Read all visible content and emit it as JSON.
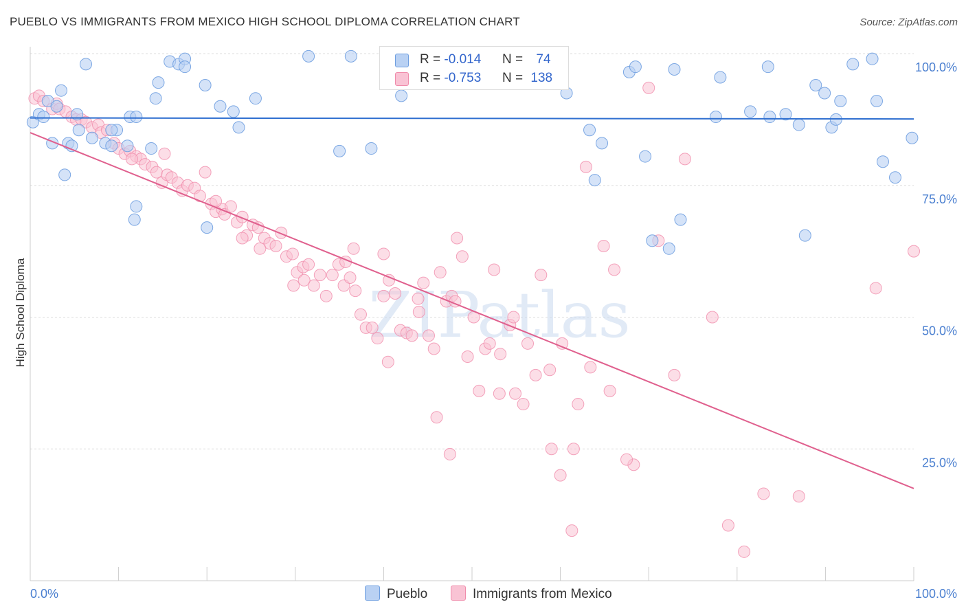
{
  "title": "PUEBLO VS IMMIGRANTS FROM MEXICO HIGH SCHOOL DIPLOMA CORRELATION CHART",
  "source": "Source: ZipAtlas.com",
  "watermark": "ZIPatlas",
  "legend_top": {
    "rows": [
      {
        "r_label": "R =",
        "r_value": "-0.014",
        "n_label": "N =",
        "n_value": "74"
      },
      {
        "r_label": "R =",
        "r_value": "-0.753",
        "n_label": "N =",
        "n_value": "138"
      }
    ]
  },
  "chart_data": {
    "type": "scatter",
    "title": "PUEBLO VS IMMIGRANTS FROM MEXICO HIGH SCHOOL DIPLOMA CORRELATION CHART",
    "xlabel": "",
    "ylabel": "High School Diploma",
    "xlim": [
      0,
      100
    ],
    "ylim": [
      0,
      100
    ],
    "x_tick_labels": [
      "0.0%",
      "100.0%"
    ],
    "y_tick_labels": [
      "100.0%",
      "75.0%",
      "50.0%",
      "25.0%"
    ],
    "y_tick_values": [
      100,
      75,
      50,
      25
    ],
    "grid": true,
    "legend": "bottom-center",
    "colors": {
      "pueblo": "#6f9fe0",
      "mexico": "#f08cab",
      "pueblo_line": "#2f6fd0",
      "mexico_line": "#e0608e"
    },
    "series": [
      {
        "name": "Pueblo",
        "trend": [
          [
            0,
            87.8
          ],
          [
            100,
            87.6
          ]
        ],
        "points": [
          [
            0.3,
            87
          ],
          [
            1,
            88.5
          ],
          [
            2,
            91
          ],
          [
            1.5,
            88
          ],
          [
            3.5,
            93
          ],
          [
            6.3,
            98
          ],
          [
            3,
            90
          ],
          [
            5.3,
            88.5
          ],
          [
            2.5,
            83
          ],
          [
            4.3,
            83
          ],
          [
            4.7,
            82.5
          ],
          [
            5.5,
            85.5
          ],
          [
            7,
            84
          ],
          [
            8.5,
            83
          ],
          [
            9.2,
            82.5
          ],
          [
            9.8,
            85.5
          ],
          [
            9.2,
            85.5
          ],
          [
            11.3,
            88
          ],
          [
            11,
            82.5
          ],
          [
            12,
            88
          ],
          [
            13.7,
            82
          ],
          [
            14.2,
            91.5
          ],
          [
            14.5,
            94.5
          ],
          [
            15.8,
            98.5
          ],
          [
            16.8,
            98
          ],
          [
            17.5,
            99
          ],
          [
            17.5,
            97.5
          ],
          [
            19.8,
            94
          ],
          [
            21.5,
            90
          ],
          [
            23,
            89
          ],
          [
            23.6,
            86
          ],
          [
            25.5,
            91.5
          ],
          [
            12,
            71
          ],
          [
            11.8,
            68.5
          ],
          [
            20,
            67
          ],
          [
            3.9,
            77
          ],
          [
            31.5,
            99.5
          ],
          [
            36.3,
            99.5
          ],
          [
            35,
            81.5
          ],
          [
            38.6,
            82
          ],
          [
            42,
            92
          ],
          [
            46.2,
            97
          ],
          [
            46.5,
            94.5
          ],
          [
            60.7,
            92.5
          ],
          [
            63.3,
            85.5
          ],
          [
            63.9,
            76
          ],
          [
            64.7,
            83
          ],
          [
            67.8,
            96.5
          ],
          [
            68.5,
            97.5
          ],
          [
            69.6,
            80.5
          ],
          [
            70.4,
            64.5
          ],
          [
            72.3,
            63
          ],
          [
            72.9,
            97
          ],
          [
            73.6,
            68.5
          ],
          [
            77.6,
            88
          ],
          [
            78.1,
            95.5
          ],
          [
            81.5,
            89
          ],
          [
            83.5,
            97.5
          ],
          [
            83.7,
            88
          ],
          [
            85.5,
            88.5
          ],
          [
            87,
            86.5
          ],
          [
            87.7,
            65.5
          ],
          [
            88.9,
            94
          ],
          [
            89.9,
            92.5
          ],
          [
            90.7,
            86
          ],
          [
            91.2,
            87.5
          ],
          [
            91.7,
            91
          ],
          [
            93.1,
            98
          ],
          [
            95.3,
            99
          ],
          [
            95.8,
            91
          ],
          [
            96.5,
            79.5
          ],
          [
            97.9,
            76.5
          ],
          [
            99.8,
            84
          ]
        ]
      },
      {
        "name": "Immigrants from Mexico",
        "trend": [
          [
            0,
            85
          ],
          [
            100,
            17.5
          ]
        ],
        "points": [
          [
            0.5,
            91.5
          ],
          [
            1,
            92
          ],
          [
            1.5,
            91
          ],
          [
            2.5,
            89.5
          ],
          [
            3,
            90.5
          ],
          [
            3.3,
            89.5
          ],
          [
            4,
            89
          ],
          [
            4.7,
            88
          ],
          [
            5.2,
            87.5
          ],
          [
            5.8,
            87.5
          ],
          [
            6.3,
            87
          ],
          [
            7,
            86
          ],
          [
            7.7,
            86.5
          ],
          [
            8,
            85
          ],
          [
            8.7,
            85.5
          ],
          [
            9.5,
            83
          ],
          [
            10,
            82
          ],
          [
            10.7,
            81
          ],
          [
            11.3,
            81.5
          ],
          [
            12,
            80.5
          ],
          [
            12.5,
            80
          ],
          [
            13,
            79
          ],
          [
            13.8,
            78.5
          ],
          [
            14.3,
            77.5
          ],
          [
            14.9,
            75.5
          ],
          [
            15.5,
            77
          ],
          [
            16,
            76.5
          ],
          [
            16.7,
            75.5
          ],
          [
            17.2,
            74
          ],
          [
            17.8,
            75
          ],
          [
            18.6,
            74.5
          ],
          [
            19.2,
            73
          ],
          [
            19.8,
            77.5
          ],
          [
            20.5,
            71.5
          ],
          [
            21,
            70
          ],
          [
            21.7,
            70.5
          ],
          [
            22,
            69.5
          ],
          [
            22.7,
            71
          ],
          [
            23.4,
            68
          ],
          [
            24,
            69
          ],
          [
            24.5,
            65.5
          ],
          [
            25.2,
            67.5
          ],
          [
            25.8,
            67
          ],
          [
            26.5,
            65
          ],
          [
            27.1,
            64
          ],
          [
            27.8,
            63.5
          ],
          [
            28.4,
            66
          ],
          [
            29,
            61.5
          ],
          [
            29.7,
            62
          ],
          [
            30.2,
            58.5
          ],
          [
            30.9,
            59.5
          ],
          [
            31.5,
            60
          ],
          [
            32.1,
            56
          ],
          [
            32.8,
            58
          ],
          [
            33.5,
            54
          ],
          [
            34.2,
            58
          ],
          [
            34.9,
            60
          ],
          [
            35.5,
            56
          ],
          [
            36.2,
            57.5
          ],
          [
            36.8,
            55
          ],
          [
            37.4,
            50.5
          ],
          [
            38,
            48
          ],
          [
            38.7,
            48
          ],
          [
            39.3,
            46
          ],
          [
            40,
            54
          ],
          [
            40.6,
            57
          ],
          [
            41.3,
            54.5
          ],
          [
            41.9,
            47.5
          ],
          [
            42.6,
            47
          ],
          [
            43.2,
            46.5
          ],
          [
            43.9,
            53.5
          ],
          [
            44.5,
            56.5
          ],
          [
            45.1,
            46.5
          ],
          [
            45.7,
            44
          ],
          [
            46.4,
            58.5
          ],
          [
            47.1,
            53
          ],
          [
            47.7,
            54
          ],
          [
            48.3,
            65
          ],
          [
            48.9,
            61.5
          ],
          [
            49.5,
            42.5
          ],
          [
            50.2,
            50
          ],
          [
            50.8,
            36
          ],
          [
            51.5,
            44
          ],
          [
            52,
            45
          ],
          [
            53.1,
            35.5
          ],
          [
            54.3,
            48.5
          ],
          [
            54.9,
            35.5
          ],
          [
            55.8,
            33.5
          ],
          [
            56.3,
            45
          ],
          [
            57.2,
            39
          ],
          [
            57.8,
            58
          ],
          [
            58.8,
            40
          ],
          [
            60.2,
            45
          ],
          [
            62,
            33.5
          ],
          [
            62.9,
            78.5
          ],
          [
            63.4,
            40.5
          ],
          [
            64.9,
            63.5
          ],
          [
            65.6,
            36
          ],
          [
            66.1,
            59
          ],
          [
            68.3,
            22
          ],
          [
            70,
            93.5
          ],
          [
            71.1,
            64.5
          ],
          [
            72.9,
            39
          ],
          [
            74.1,
            80
          ],
          [
            77.2,
            50
          ],
          [
            79,
            10.5
          ],
          [
            80.8,
            5.5
          ],
          [
            83,
            16.5
          ],
          [
            87,
            16
          ],
          [
            95.7,
            55.5
          ],
          [
            100,
            62.5
          ],
          [
            11.5,
            80
          ],
          [
            26,
            63
          ],
          [
            31,
            57
          ],
          [
            21,
            72
          ],
          [
            40.5,
            41.5
          ],
          [
            46,
            31
          ],
          [
            47.5,
            24
          ],
          [
            59,
            25
          ],
          [
            61.5,
            25
          ],
          [
            60,
            20
          ],
          [
            61.3,
            9.5
          ],
          [
            67.5,
            23
          ],
          [
            53.2,
            43
          ],
          [
            35.7,
            60.5
          ],
          [
            15.2,
            81
          ],
          [
            24,
            65
          ],
          [
            44,
            51
          ],
          [
            36.6,
            63
          ],
          [
            29.8,
            56
          ],
          [
            40,
            62
          ],
          [
            48.1,
            53
          ],
          [
            52.5,
            59
          ],
          [
            54.7,
            50
          ]
        ]
      }
    ]
  }
}
